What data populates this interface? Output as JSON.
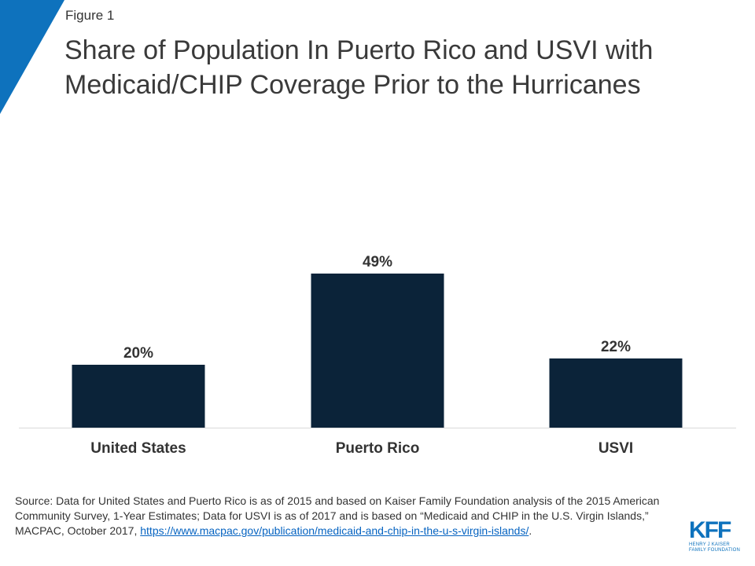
{
  "header": {
    "figure_label": "Figure 1",
    "title": "Share of Population In Puerto Rico and USVI with Medicaid/CHIP Coverage Prior to the Hurricanes"
  },
  "colors": {
    "accent": "#0e72bd",
    "bar": "#0b2339",
    "axis": "#d9d9d9",
    "link": "#0563c1"
  },
  "chart_data": {
    "type": "bar",
    "categories": [
      "United States",
      "Puerto Rico",
      "USVI"
    ],
    "values": [
      20,
      49,
      22
    ],
    "data_labels": [
      "20%",
      "49%",
      "22%"
    ],
    "title": "Share of Population In Puerto Rico and USVI with Medicaid/CHIP Coverage Prior to the Hurricanes",
    "xlabel": "",
    "ylabel": "",
    "ylim": [
      0,
      49
    ],
    "grid": false,
    "legend": "none"
  },
  "source": {
    "text": "Source: Data for United States and Puerto Rico is as of 2015 and based on Kaiser Family Foundation analysis of the 2015 American Community Survey, 1-Year Estimates; Data for USVI is as of 2017 and is based on “Medicaid and CHIP in the U.S. Virgin Islands,”  MACPAC, October 2017, ",
    "link_text": "https://www.macpac.gov/publication/medicaid-and-chip-in-the-u-s-virgin-islands/",
    "suffix": "."
  },
  "logo": {
    "word": "KFF",
    "sub_line1": "HENRY J KAISER",
    "sub_line2": "FAMILY FOUNDATION",
    "icon": "kff-logo"
  }
}
